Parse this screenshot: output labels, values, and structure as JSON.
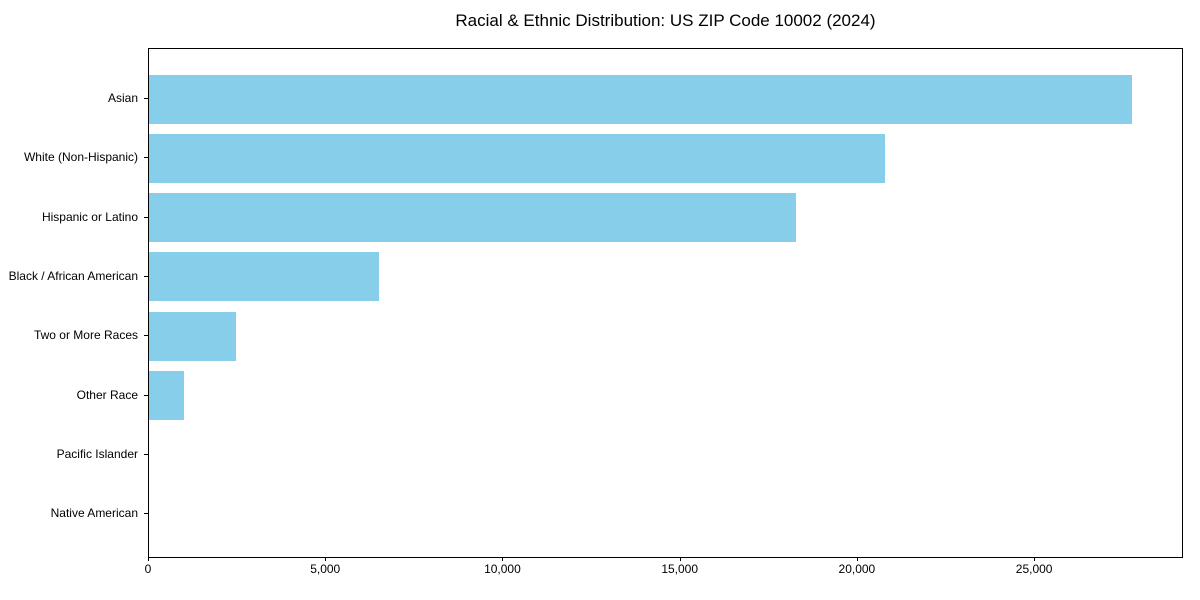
{
  "chart_data": {
    "type": "bar",
    "orientation": "horizontal",
    "title": "Racial & Ethnic Distribution: US ZIP Code 10002 (2024)",
    "categories": [
      "Asian",
      "White (Non-Hispanic)",
      "Hispanic or Latino",
      "Black / African American",
      "Two or More Races",
      "Other Race",
      "Pacific Islander",
      "Native American"
    ],
    "values": [
      27800,
      20800,
      18300,
      6500,
      2450,
      980,
      0,
      0
    ],
    "xlabel": "",
    "ylabel": "",
    "xlim": [
      0,
      29200
    ],
    "x_ticks": [
      0,
      5000,
      10000,
      15000,
      20000,
      25000
    ],
    "x_tick_labels": [
      "0",
      "5,000",
      "10,000",
      "15,000",
      "20,000",
      "25,000"
    ],
    "bar_color": "#87CEEB",
    "spine_color": "#000000",
    "text_color": "#000000",
    "grid": false,
    "legend": null
  }
}
